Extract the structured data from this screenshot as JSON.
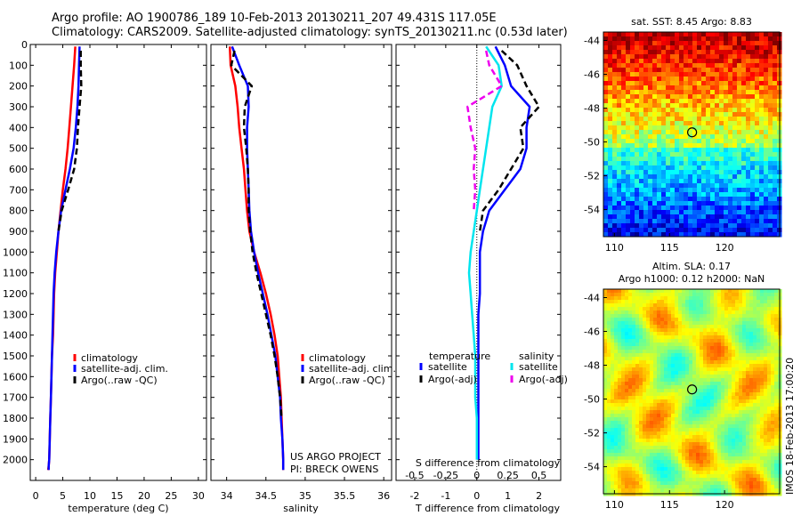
{
  "header": {
    "line1": "Argo profile: AO 1900786_189 10-Feb-2013 20130211_207 49.431S 117.05E",
    "line2": "Climatology: CARS2009. Satellite-adjusted climatology: synTS_20130211.nc (0.53d later)"
  },
  "sst_map": {
    "title": "sat. SST: 8.45 Argo: 8.83",
    "x_ticks": [
      110,
      115,
      120
    ],
    "y_ticks": [
      -44,
      -46,
      -48,
      -50,
      -52,
      -54
    ],
    "xlim": [
      109,
      125
    ],
    "ylim": [
      -55.6,
      -43.5
    ],
    "float_lon": 117.05,
    "float_lat": -49.43
  },
  "sla_map": {
    "title_line1": "Altim. SLA: 0.17",
    "title_line2": "Argo h1000: 0.12 h2000: NaN",
    "x_ticks": [
      110,
      115,
      120
    ],
    "y_ticks": [
      -44,
      -46,
      -48,
      -50,
      -52,
      -54
    ],
    "xlim": [
      109,
      125
    ],
    "ylim": [
      -55.6,
      -43.5
    ],
    "float_lon": 117.05,
    "float_lat": -49.43,
    "side_label": "IMOS 18-Feb-2013 17:00:20"
  },
  "credits": {
    "line1": "US ARGO PROJECT",
    "line2": "PI: BRECK OWENS"
  },
  "colors": {
    "climatology": "#ff0000",
    "satellite": "#0000ff",
    "argo": "#000000",
    "satellite_salinity": "#00e5ee",
    "argo_salinity": "#ee00ee"
  },
  "chart_data": [
    {
      "type": "line",
      "name": "temperature-profile",
      "xlabel": "temperature (deg C)",
      "ylabel": "",
      "xlim": [
        -1,
        31.5
      ],
      "ylim": [
        2100,
        0
      ],
      "x_ticks": [
        0,
        5,
        10,
        15,
        20,
        25,
        30
      ],
      "y_ticks": [
        0,
        100,
        200,
        300,
        400,
        500,
        600,
        700,
        800,
        900,
        1000,
        1100,
        1200,
        1300,
        1400,
        1500,
        1600,
        1700,
        1800,
        1900,
        2000
      ],
      "legend": [
        "climatology",
        "satellite-adj. clim.",
        "Argo(..raw -QC)"
      ],
      "legend_position": "lower-right",
      "series": [
        {
          "name": "climatology",
          "color": "#ff0000",
          "dash": "",
          "x": [
            7.3,
            7.1,
            6.8,
            6.5,
            6.2,
            5.9,
            5.5,
            5.0,
            4.6,
            4.2,
            3.9,
            3.6,
            3.4,
            3.3,
            3.2,
            3.0,
            2.9,
            2.8,
            2.7,
            2.6,
            2.5,
            2.4,
            2.3
          ],
          "y": [
            10,
            100,
            200,
            300,
            400,
            500,
            600,
            700,
            800,
            900,
            1000,
            1100,
            1200,
            1300,
            1400,
            1500,
            1600,
            1700,
            1800,
            1900,
            2000,
            2030,
            2050
          ]
        },
        {
          "name": "satellite-adj. clim.",
          "color": "#0000ff",
          "dash": "",
          "x": [
            8.1,
            8.0,
            7.9,
            7.7,
            7.4,
            7.0,
            6.3,
            5.5,
            4.7,
            4.2,
            3.8,
            3.5,
            3.3,
            3.2,
            3.1,
            3.0,
            2.9,
            2.8,
            2.7,
            2.6,
            2.5,
            2.4,
            2.4
          ],
          "y": [
            10,
            100,
            200,
            300,
            400,
            500,
            600,
            700,
            800,
            900,
            1000,
            1100,
            1200,
            1300,
            1400,
            1500,
            1600,
            1700,
            1800,
            1900,
            2000,
            2030,
            2050
          ]
        },
        {
          "name": "Argo(..raw -QC)",
          "color": "#000000",
          "dash": "7,4",
          "x": [
            8.3,
            8.3,
            8.4,
            8.1,
            7.8,
            7.6,
            7.1,
            6.0,
            4.8,
            4.2
          ],
          "y": [
            30,
            100,
            200,
            300,
            400,
            500,
            600,
            700,
            800,
            900
          ]
        }
      ]
    },
    {
      "type": "line",
      "name": "salinity-profile",
      "xlabel": "salinity",
      "ylabel": "",
      "xlim": [
        33.8,
        36.1
      ],
      "ylim": [
        2100,
        0
      ],
      "x_ticks": [
        34,
        34.5,
        35,
        35.5,
        36
      ],
      "legend": [
        "climatology",
        "satellite-adj. clim.",
        "Argo(..raw -QC)"
      ],
      "legend_position": "lower-right",
      "series": [
        {
          "name": "climatology",
          "color": "#ff0000",
          "dash": "",
          "x": [
            34.04,
            34.05,
            34.11,
            34.14,
            34.16,
            34.19,
            34.22,
            34.24,
            34.26,
            34.29,
            34.35,
            34.43,
            34.5,
            34.56,
            34.61,
            34.65,
            34.67,
            34.69,
            34.7,
            34.71,
            34.72,
            34.72
          ],
          "y": [
            10,
            100,
            200,
            300,
            400,
            500,
            600,
            700,
            800,
            900,
            1000,
            1100,
            1200,
            1300,
            1400,
            1500,
            1600,
            1700,
            1800,
            1900,
            2000,
            2050
          ]
        },
        {
          "name": "satellite-adj. clim.",
          "color": "#0000ff",
          "dash": "",
          "x": [
            34.07,
            34.16,
            34.27,
            34.28,
            34.26,
            34.26,
            34.27,
            34.28,
            34.29,
            34.31,
            34.35,
            34.4,
            34.46,
            34.52,
            34.57,
            34.62,
            34.65,
            34.68,
            34.69,
            34.71,
            34.72,
            34.72
          ],
          "y": [
            10,
            100,
            200,
            300,
            400,
            500,
            600,
            700,
            800,
            900,
            1000,
            1100,
            1200,
            1300,
            1400,
            1500,
            1600,
            1700,
            1800,
            1900,
            2000,
            2050
          ]
        },
        {
          "name": "Argo(..raw -QC)",
          "color": "#000000",
          "dash": "7,4",
          "x": [
            34.1,
            34.06,
            34.32,
            34.23,
            34.22,
            34.25,
            34.27,
            34.28,
            34.28,
            34.3,
            34.33,
            34.38,
            34.44,
            34.5,
            34.56,
            34.61,
            34.65,
            34.68,
            34.7
          ],
          "y": [
            30,
            100,
            200,
            300,
            400,
            500,
            600,
            700,
            800,
            900,
            1000,
            1100,
            1200,
            1300,
            1400,
            1500,
            1600,
            1700,
            1800
          ]
        }
      ]
    },
    {
      "type": "line",
      "name": "difference-profile",
      "xlabel": "T difference from climatology",
      "x2label": "S difference from climatology",
      "ylabel": "",
      "xlim": [
        -2.6,
        2.7
      ],
      "ylim": [
        2100,
        0
      ],
      "x_ticks": [
        -2,
        -1,
        0,
        1,
        2
      ],
      "x2_ticks": [
        "-0.5",
        "-0.25",
        "0",
        "0.25",
        "0.5"
      ],
      "x2_tick_values": [
        -2,
        -1,
        0,
        1,
        2
      ],
      "legend_temperature_title": "temperature",
      "legend_salinity_title": "salinity",
      "legend": [
        "satellite",
        "Argo(-adj)",
        "satellite",
        "Argo(-adj)"
      ],
      "legend_position": "lower-right",
      "series": [
        {
          "name": "temperature satellite",
          "color": "#0000ff",
          "dash": "",
          "x": [
            0.6,
            0.9,
            1.1,
            1.7,
            1.6,
            1.6,
            1.4,
            0.9,
            0.4,
            0.2,
            0.1,
            0.1,
            0.1,
            0.05,
            0.05,
            0.05,
            0.05,
            0.05,
            0.05,
            0.05,
            0.05
          ],
          "y": [
            10,
            100,
            200,
            300,
            400,
            500,
            600,
            700,
            800,
            900,
            1000,
            1100,
            1200,
            1300,
            1400,
            1500,
            1600,
            1700,
            1800,
            1900,
            2000
          ]
        },
        {
          "name": "temperature Argo(-adj)",
          "color": "#000000",
          "dash": "7,4",
          "x": [
            0.8,
            1.3,
            1.6,
            2.0,
            1.4,
            1.5,
            1.1,
            0.7,
            0.2,
            0.1
          ],
          "y": [
            30,
            100,
            200,
            300,
            400,
            500,
            600,
            700,
            800,
            900
          ]
        },
        {
          "name": "salinity satellite",
          "color": "#00e5ee",
          "dash": "",
          "x": [
            0.3,
            0.7,
            0.8,
            0.5,
            0.4,
            0.3,
            0.2,
            0.1,
            0.0,
            -0.1,
            -0.2,
            -0.25,
            -0.2,
            -0.15,
            -0.1,
            -0.05,
            -0.05,
            -0.05,
            0.0,
            0.0,
            0.0
          ],
          "y": [
            10,
            100,
            200,
            300,
            400,
            500,
            600,
            700,
            800,
            900,
            1000,
            1100,
            1200,
            1300,
            1400,
            1500,
            1600,
            1700,
            1800,
            1900,
            2000
          ]
        },
        {
          "name": "salinity Argo(-adj)",
          "color": "#ee00ee",
          "dash": "7,4",
          "x": [
            0.3,
            0.4,
            0.8,
            -0.3,
            -0.2,
            -0.05,
            -0.1,
            -0.05,
            -0.1
          ],
          "y": [
            30,
            100,
            200,
            300,
            400,
            500,
            600,
            700,
            800
          ]
        }
      ]
    }
  ]
}
